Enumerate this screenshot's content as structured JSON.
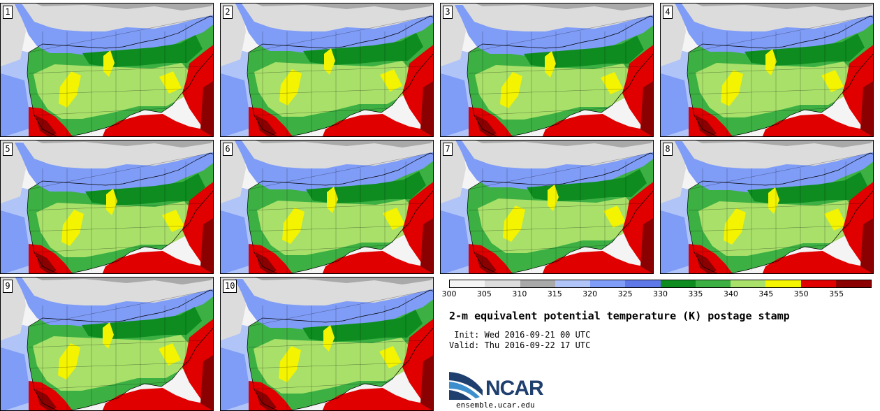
{
  "panels": [
    {
      "label": "1"
    },
    {
      "label": "2"
    },
    {
      "label": "3"
    },
    {
      "label": "4"
    },
    {
      "label": "5"
    },
    {
      "label": "6"
    },
    {
      "label": "7"
    },
    {
      "label": "8"
    },
    {
      "label": "9"
    },
    {
      "label": "10"
    }
  ],
  "colorbar": {
    "ticks": [
      "300",
      "305",
      "310",
      "315",
      "320",
      "325",
      "330",
      "335",
      "340",
      "345",
      "350",
      "355"
    ],
    "colors": [
      "#f4f4f4",
      "#dcdcdc",
      "#a9a9a9",
      "#b0c4f8",
      "#7f9cf6",
      "#5e78e8",
      "#0e8c1f",
      "#3cb043",
      "#a8e06a",
      "#f4f400",
      "#e00000",
      "#8b0000"
    ]
  },
  "title": "2-m equivalent potential temperature (K) postage stamp",
  "init": " Init: Wed 2016-09-21 00 UTC",
  "valid": "Valid: Thu 2016-09-22 17 UTC",
  "logo": {
    "text": "NCAR",
    "colors": {
      "blue": "#1f3f6e",
      "light": "#3d8ecc"
    }
  },
  "website": "ensemble.ucar.edu"
}
